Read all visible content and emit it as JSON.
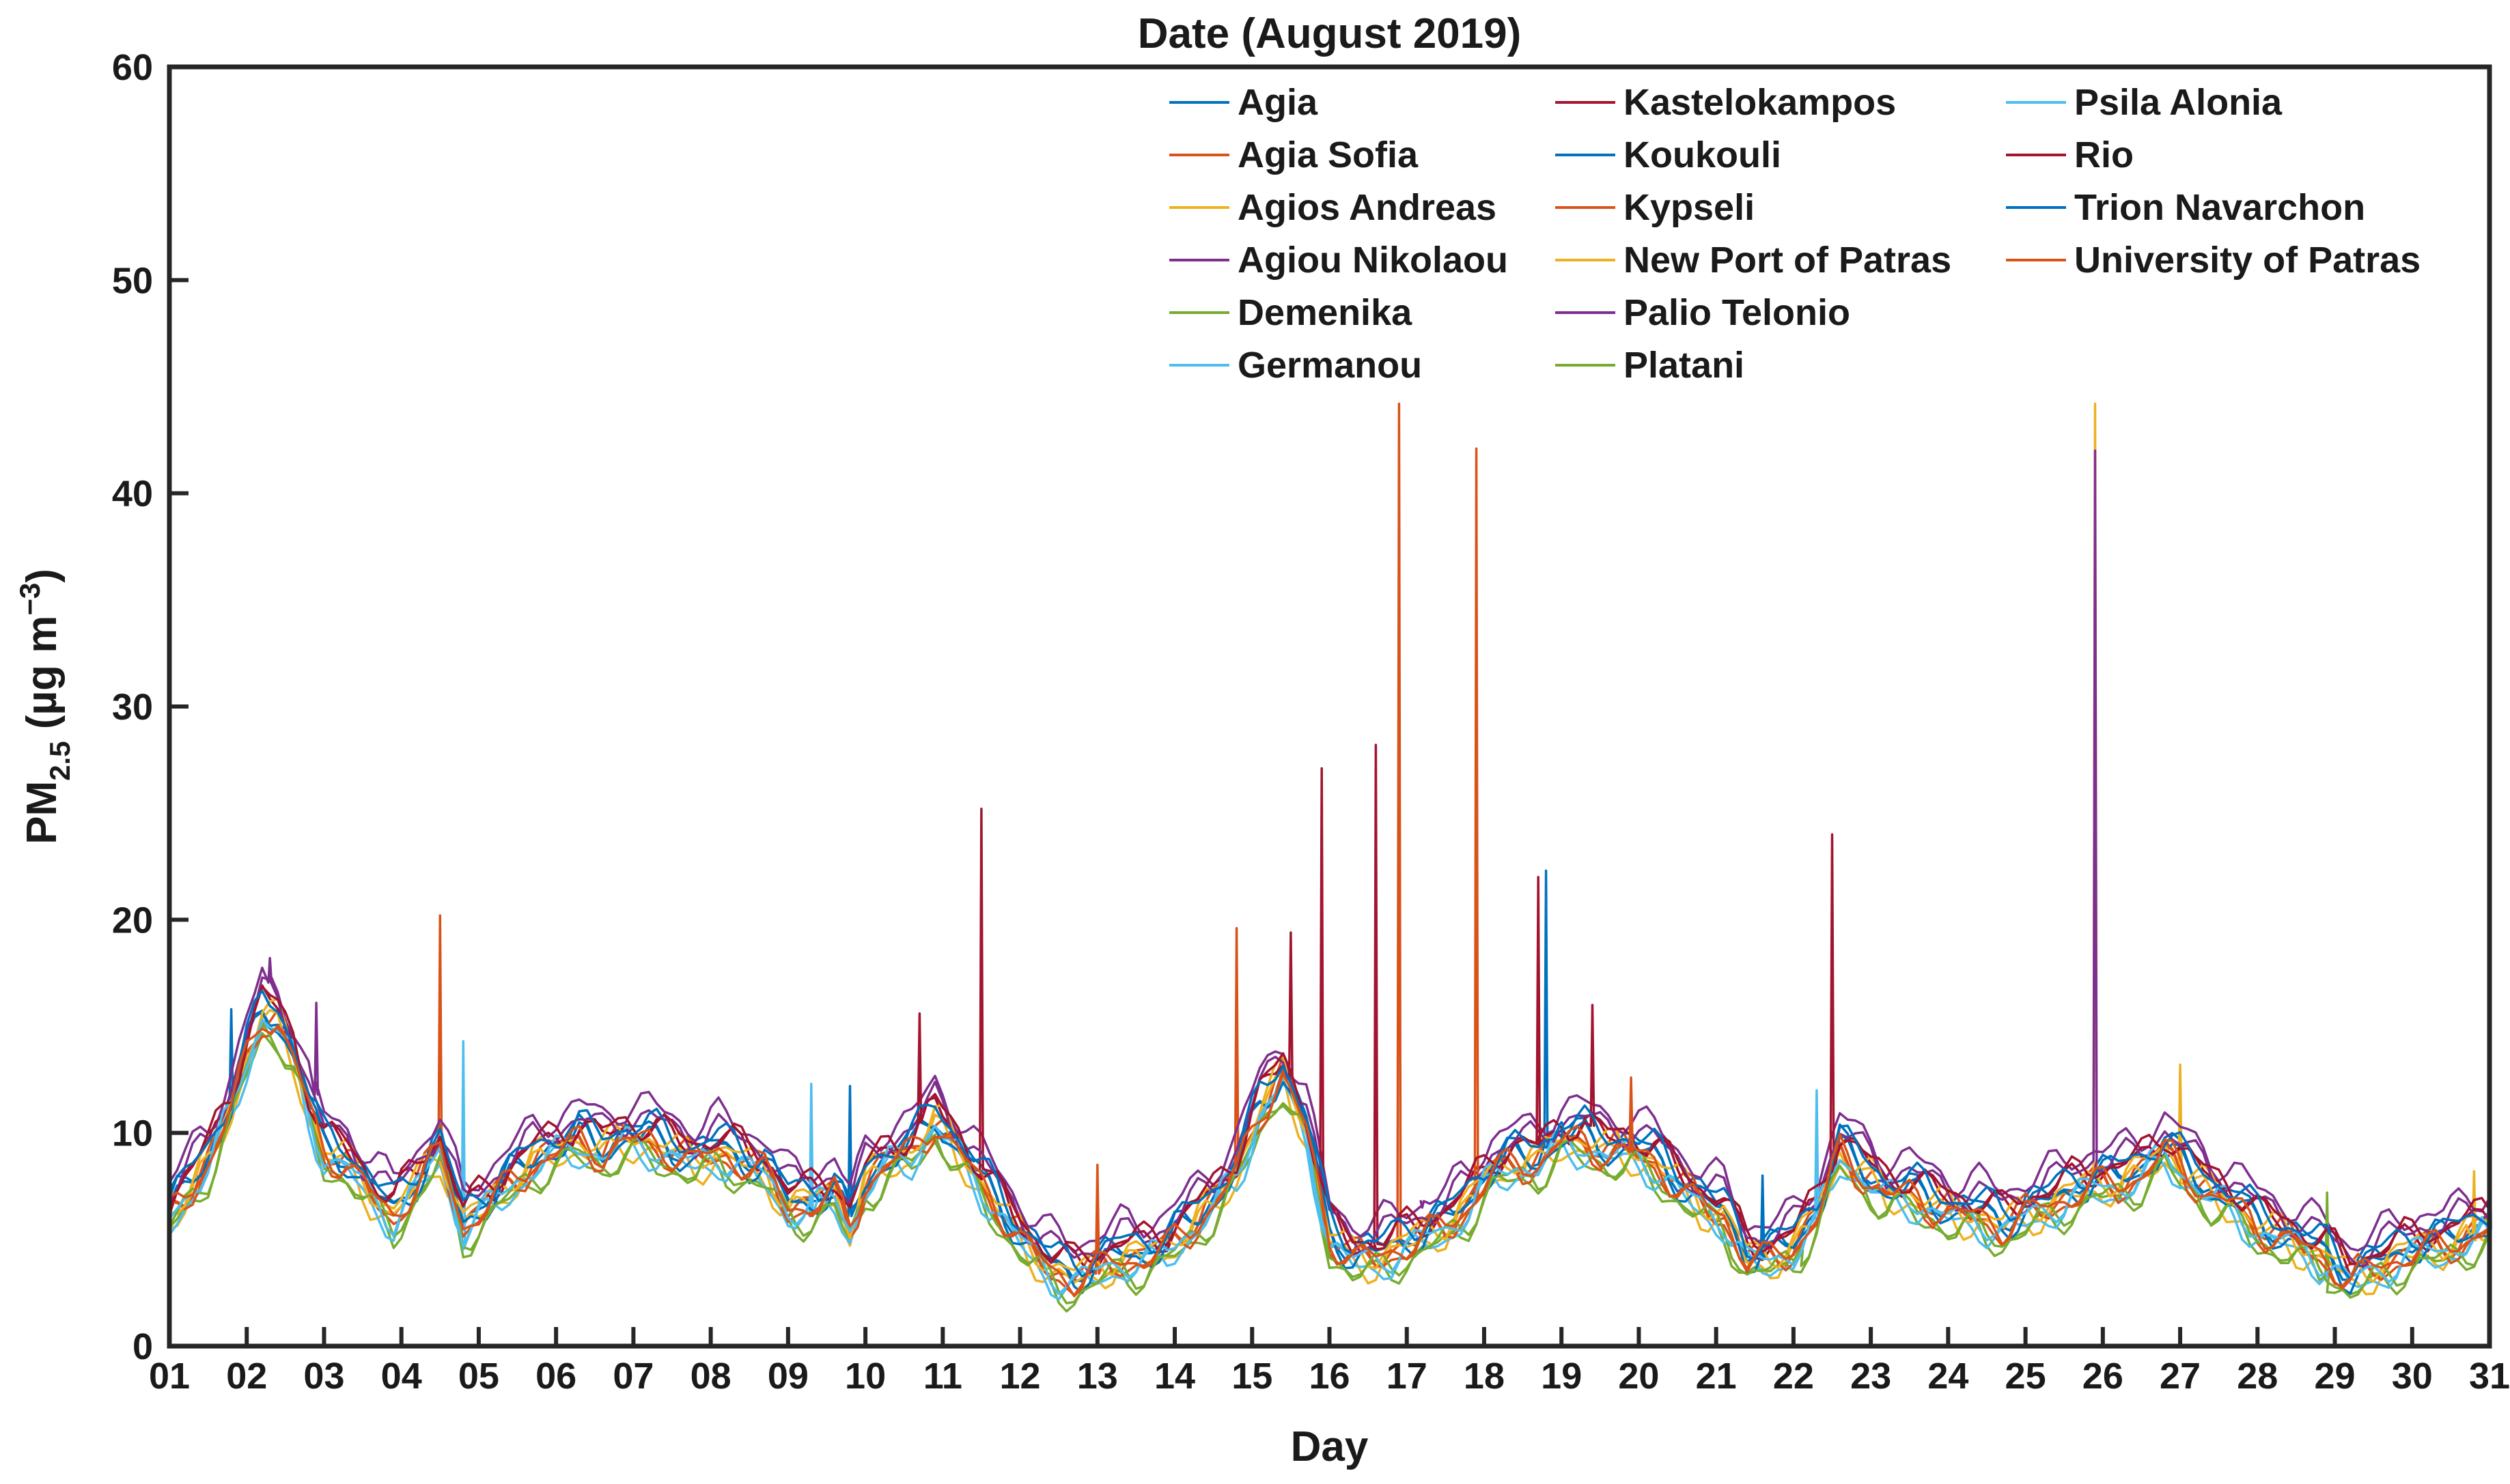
{
  "chart_data": {
    "type": "line",
    "title": "Date (August 2019)",
    "xlabel": "Day",
    "ylabel_main": "PM",
    "ylabel_sub": "2.5",
    "ylabel_unit_open": " (µg m",
    "ylabel_unit_sup": "−3",
    "ylabel_unit_close": ")",
    "xlim": [
      1,
      31
    ],
    "ylim": [
      0,
      60
    ],
    "x_ticks": [
      1,
      2,
      3,
      4,
      5,
      6,
      7,
      8,
      9,
      10,
      11,
      12,
      13,
      14,
      15,
      16,
      17,
      18,
      19,
      20,
      21,
      22,
      23,
      24,
      25,
      26,
      27,
      28,
      29,
      30,
      31
    ],
    "x_tick_labels": [
      "01",
      "02",
      "03",
      "04",
      "05",
      "06",
      "07",
      "08",
      "09",
      "10",
      "11",
      "12",
      "13",
      "14",
      "15",
      "16",
      "17",
      "18",
      "19",
      "20",
      "21",
      "22",
      "23",
      "24",
      "25",
      "26",
      "27",
      "28",
      "29",
      "30",
      "31"
    ],
    "y_ticks": [
      0,
      10,
      20,
      30,
      40,
      50,
      60
    ],
    "y_tick_labels": [
      "0",
      "10",
      "20",
      "30",
      "40",
      "50",
      "60"
    ],
    "grid": false,
    "legend_position": "top-right",
    "baseline": {
      "x": [
        1,
        1.2,
        1.5,
        1.8,
        2.0,
        2.2,
        2.4,
        2.6,
        2.8,
        3.0,
        3.3,
        3.6,
        3.9,
        4.2,
        4.5,
        4.8,
        5.1,
        5.4,
        5.7,
        6.0,
        6.3,
        6.6,
        6.9,
        7.2,
        7.5,
        7.8,
        8.1,
        8.4,
        8.7,
        9.0,
        9.3,
        9.6,
        9.8,
        10.0,
        10.3,
        10.6,
        10.9,
        11.2,
        11.5,
        11.8,
        12.1,
        12.4,
        12.7,
        13.0,
        13.3,
        13.6,
        13.9,
        14.2,
        14.5,
        14.8,
        15.1,
        15.4,
        15.7,
        16.0,
        16.3,
        16.6,
        16.9,
        17.2,
        17.5,
        17.8,
        18.1,
        18.4,
        18.7,
        19.0,
        19.3,
        19.6,
        19.9,
        20.2,
        20.5,
        20.8,
        21.1,
        21.4,
        21.7,
        22.0,
        22.3,
        22.6,
        22.9,
        23.2,
        23.5,
        23.8,
        24.1,
        24.4,
        24.7,
        25.0,
        25.3,
        25.6,
        25.9,
        26.2,
        26.5,
        26.8,
        27.1,
        27.4,
        27.7,
        28.0,
        28.3,
        28.6,
        28.9,
        29.2,
        29.5,
        29.8,
        30.1,
        30.4,
        30.7,
        31.0
      ],
      "y": [
        6,
        7,
        8.5,
        11,
        13.5,
        15.5,
        15,
        13.5,
        11,
        9,
        8.5,
        7,
        6,
        7.5,
        9,
        5.5,
        6.5,
        7.5,
        8.5,
        9,
        9.5,
        9,
        9.5,
        9.5,
        9,
        8.5,
        9,
        8.5,
        8,
        6.5,
        6.5,
        7,
        5.5,
        7.5,
        8.5,
        9,
        10.5,
        9,
        7.5,
        6,
        4.5,
        3.5,
        3,
        3.5,
        4,
        4,
        4.5,
        5.5,
        6.5,
        8,
        11,
        12.5,
        10,
        5,
        4,
        4,
        4.5,
        5,
        5.5,
        6.5,
        8,
        8.5,
        8.5,
        9.5,
        9.5,
        9,
        9,
        8.5,
        7.5,
        6.5,
        6,
        4,
        4,
        4.5,
        6,
        9,
        8,
        7,
        7,
        6.5,
        6,
        6,
        5.5,
        6,
        6.5,
        7,
        7.5,
        7.5,
        8,
        9,
        8,
        7,
        6.5,
        5.5,
        5,
        4.5,
        4,
        3,
        3.5,
        4,
        4.5,
        4.5,
        5,
        5.5
      ]
    },
    "series": [
      {
        "name": "Agia",
        "color": "#0072BD",
        "offset": 0.6,
        "spikes": [
          [
            1.8,
            15.8
          ],
          [
            9.8,
            12.2
          ],
          [
            18.8,
            22.3
          ]
        ]
      },
      {
        "name": "Agia Sofia",
        "color": "#D95319",
        "offset": 0.3,
        "spikes": [
          [
            4.5,
            20.2
          ],
          [
            14.8,
            19.6
          ],
          [
            16.9,
            44.2
          ]
        ]
      },
      {
        "name": "Agios Andreas",
        "color": "#EDB120",
        "offset": -0.2,
        "spikes": [
          [
            27.0,
            13.2
          ],
          [
            30.8,
            8.2
          ]
        ]
      },
      {
        "name": "Agiou Nikolaou",
        "color": "#7E2F8E",
        "offset": 1.8,
        "spikes": [
          [
            2.3,
            18.2
          ],
          [
            2.9,
            16.1
          ],
          [
            17.2,
            6.5
          ]
        ]
      },
      {
        "name": "Demenika",
        "color": "#77AC30",
        "offset": -0.7,
        "spikes": [
          [
            28.9,
            7.2
          ]
        ]
      },
      {
        "name": "Germanou",
        "color": "#4DBEEE",
        "offset": -0.4,
        "spikes": [
          [
            4.8,
            14.3
          ],
          [
            9.3,
            12.3
          ]
        ]
      },
      {
        "name": "Kastelokampos",
        "color": "#A2142F",
        "offset": 0.8,
        "spikes": [
          [
            11.5,
            25.2
          ],
          [
            15.9,
            27.1
          ],
          [
            16.6,
            28.2
          ],
          [
            22.5,
            24.0
          ]
        ]
      },
      {
        "name": "Koukouli",
        "color": "#0072BD",
        "offset": 0.2,
        "spikes": [
          [
            21.6,
            8.0
          ]
        ]
      },
      {
        "name": "Kypseli",
        "color": "#D95319",
        "offset": -0.1,
        "spikes": [
          [
            13.0,
            8.5
          ],
          [
            17.9,
            42.1
          ]
        ]
      },
      {
        "name": "New Port of Patras",
        "color": "#EDB120",
        "offset": 0.4,
        "spikes": [
          [
            25.9,
            44.2
          ]
        ]
      },
      {
        "name": "Palio Telonio",
        "color": "#7E2F8E",
        "offset": 1.2,
        "spikes": [
          [
            25.9,
            42.0
          ]
        ]
      },
      {
        "name": "Platani",
        "color": "#77AC30",
        "offset": -0.5,
        "spikes": [
          [
            22.1,
            4.5
          ]
        ]
      },
      {
        "name": "Psila Alonia",
        "color": "#4DBEEE",
        "offset": 0.0,
        "spikes": [
          [
            22.3,
            12.0
          ],
          [
            31.0,
            10.5
          ]
        ]
      },
      {
        "name": "Rio",
        "color": "#A2142F",
        "offset": 1.0,
        "spikes": [
          [
            10.7,
            15.6
          ],
          [
            15.5,
            19.4
          ],
          [
            18.7,
            22.0
          ],
          [
            19.4,
            16.0
          ]
        ]
      },
      {
        "name": "Trion Navarchon",
        "color": "#0072BD",
        "offset": 0.9,
        "spikes": [
          [
            19.0,
            10.5
          ]
        ]
      },
      {
        "name": "University of Patras",
        "color": "#D95319",
        "offset": 0.1,
        "spikes": [
          [
            19.9,
            12.6
          ]
        ]
      }
    ]
  }
}
